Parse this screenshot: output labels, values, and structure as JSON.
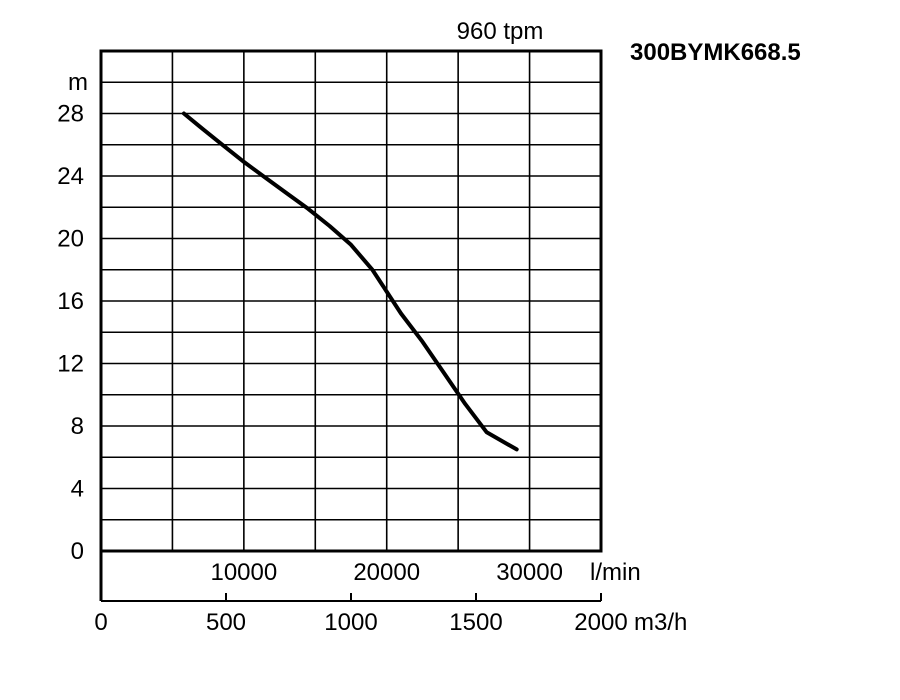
{
  "chart_data": {
    "type": "line",
    "model": "300BYMK668.5",
    "speed_label": "960 tpm",
    "ylabel": "m",
    "x_unit_top": "l/min",
    "x_unit_bottom": "m3/h",
    "ylim": [
      0,
      32
    ],
    "yticks": [
      0,
      4,
      8,
      12,
      16,
      20,
      24,
      28
    ],
    "xlim_lpm": [
      0,
      35000
    ],
    "xticks_lpm": [
      10000,
      20000,
      30000
    ],
    "xlim_m3h": [
      0,
      2000
    ],
    "xticks_m3h": [
      0,
      500,
      1000,
      1500,
      2000
    ],
    "grid": true,
    "series": [
      {
        "color": "#000000",
        "x_lpm": [
          5800,
          7000,
          8500,
          10000,
          11500,
          13000,
          14500,
          16000,
          17500,
          19000,
          20000,
          21000,
          22500,
          24000,
          25500,
          27000,
          29100
        ],
        "y": [
          28.0,
          27.1,
          26.0,
          24.9,
          23.9,
          22.9,
          21.9,
          20.8,
          19.6,
          18.0,
          16.6,
          15.2,
          13.4,
          11.4,
          9.4,
          7.6,
          6.5
        ]
      }
    ]
  }
}
